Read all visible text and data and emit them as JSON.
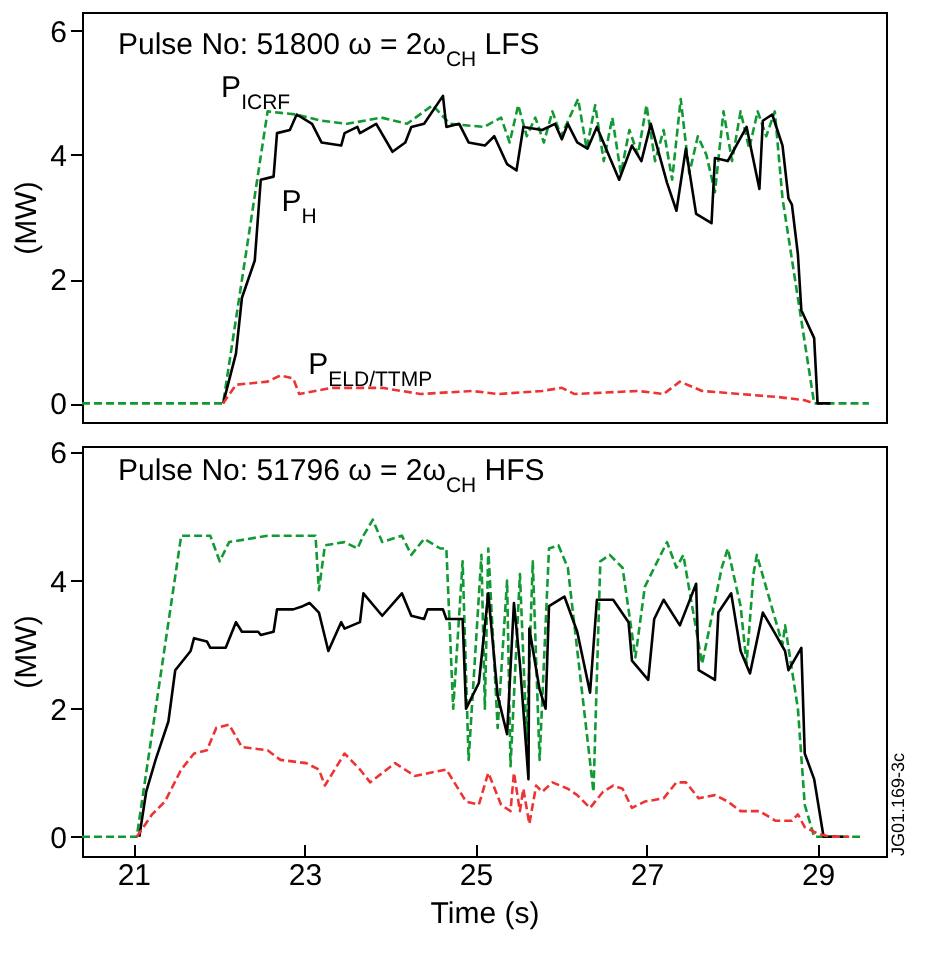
{
  "chart_data": [
    {
      "type": "line",
      "title": "Pulse No: 51800  ω = 2ω$_{CH}$ LFS",
      "ylabel": "(MW)",
      "xlim": [
        20.4,
        29.8
      ],
      "ylim": [
        -0.3,
        6.3
      ],
      "yticks": [
        0,
        2,
        4,
        6
      ],
      "tick_labels": "y",
      "grid": false,
      "series": [
        {
          "color": "#119933",
          "line_style": "dashed",
          "x": [
            20.4,
            22.05,
            22.57,
            22.9,
            23.2,
            23.5,
            23.9,
            24.2,
            24.5,
            24.7,
            25.1,
            25.3,
            25.4,
            25.5,
            25.6,
            25.7,
            25.8,
            25.9,
            26.0,
            26.1,
            26.2,
            26.3,
            26.4,
            26.5,
            26.6,
            26.7,
            26.8,
            26.9,
            27.0,
            27.1,
            27.2,
            27.3,
            27.4,
            27.5,
            27.6,
            27.7,
            27.8,
            27.9,
            28.0,
            28.1,
            28.2,
            28.3,
            28.4,
            28.5,
            28.59,
            28.96,
            29.6
          ],
          "values": [
            0,
            0,
            4.7,
            4.65,
            4.55,
            4.5,
            4.6,
            4.5,
            4.8,
            4.5,
            4.45,
            4.6,
            4.2,
            4.8,
            4.3,
            4.6,
            4.2,
            4.7,
            4.3,
            4.6,
            4.9,
            4.1,
            4.8,
            3.9,
            4.6,
            3.7,
            4.4,
            4.0,
            4.8,
            3.9,
            4.4,
            3.6,
            4.9,
            3.7,
            4.3,
            4.0,
            3.4,
            4.7,
            3.9,
            4.7,
            4.1,
            4.7,
            4.3,
            4.7,
            3.3,
            0,
            0
          ]
        },
        {
          "color": "#000000",
          "line_style": "solid",
          "x": [
            22.05,
            22.2,
            22.27,
            22.42,
            22.49,
            22.64,
            22.68,
            22.83,
            22.91,
            23.09,
            23.2,
            23.43,
            23.47,
            23.62,
            23.65,
            23.84,
            24.03,
            24.18,
            24.25,
            24.4,
            24.62,
            24.66,
            24.81,
            24.92,
            25.11,
            25.22,
            25.37,
            25.48,
            25.56,
            25.78,
            25.93,
            26.01,
            26.08,
            26.19,
            26.31,
            26.42,
            26.68,
            26.83,
            26.94,
            27.05,
            27.24,
            27.35,
            27.46,
            27.58,
            27.76,
            27.8,
            27.95,
            28.17,
            28.32,
            28.36,
            28.47,
            28.59,
            28.66,
            28.7,
            28.77,
            28.81,
            28.96,
            29.0,
            29.15
          ],
          "values": [
            0,
            0.8,
            1.7,
            2.3,
            3.6,
            3.65,
            4.35,
            4.4,
            4.65,
            4.5,
            4.2,
            4.15,
            4.35,
            4.45,
            4.35,
            4.5,
            4.05,
            4.2,
            4.45,
            4.5,
            4.95,
            4.45,
            4.5,
            4.2,
            4.15,
            4.3,
            3.85,
            3.75,
            4.45,
            4.4,
            4.5,
            4.25,
            4.5,
            4.2,
            4.1,
            4.45,
            3.6,
            4.15,
            3.9,
            4.5,
            3.55,
            3.1,
            4.1,
            3.05,
            2.9,
            3.95,
            3.9,
            4.45,
            3.45,
            4.55,
            4.65,
            4.15,
            3.3,
            3.2,
            2.4,
            1.5,
            1.05,
            0,
            0
          ]
        },
        {
          "color": "#ee3333",
          "line_style": "dashed",
          "x": [
            22.05,
            22.2,
            22.57,
            22.72,
            22.87,
            22.94,
            23.32,
            23.91,
            24.36,
            24.96,
            25.26,
            25.78,
            26.01,
            26.16,
            26.9,
            27.2,
            27.39,
            27.65,
            28.1,
            28.55,
            28.85,
            28.96
          ],
          "values": [
            0,
            0.3,
            0.35,
            0.45,
            0.4,
            0.15,
            0.25,
            0.25,
            0.15,
            0.2,
            0.15,
            0.2,
            0.25,
            0.15,
            0.2,
            0.15,
            0.35,
            0.2,
            0.15,
            0.1,
            0.05,
            0
          ]
        }
      ],
      "annotations": [
        {
          "text": "P$_{ICRF}$",
          "x": 22.57,
          "y": 4.7
        },
        {
          "text": "P$_{H}$",
          "x": 22.64,
          "y": 3.65
        },
        {
          "text": "P$_{ELD/TTMP}$",
          "x": 23.91,
          "y": 0.25
        }
      ]
    },
    {
      "type": "line",
      "title": "Pulse No: 51796  ω = 2ω$_{CH}$ HFS",
      "xlabel": "Time (s)",
      "ylabel": "(MW)",
      "xlim": [
        20.4,
        29.8
      ],
      "ylim": [
        -0.3,
        6.1
      ],
      "xticks": [
        21,
        23,
        25,
        27,
        29
      ],
      "yticks": [
        0,
        2,
        4,
        6
      ],
      "grid": false,
      "series": [
        {
          "color": "#119933",
          "line_style": "dashed",
          "x": [
            20.4,
            21.04,
            21.56,
            21.9,
            22.01,
            22.12,
            22.57,
            23.13,
            23.17,
            23.24,
            23.47,
            23.62,
            23.69,
            23.8,
            23.91,
            24.14,
            24.25,
            24.4,
            24.59,
            24.66,
            24.74,
            24.85,
            24.92,
            25.07,
            25.11,
            25.15,
            25.26,
            25.37,
            25.41,
            25.52,
            25.6,
            25.67,
            25.75,
            25.86,
            25.97,
            26.08,
            26.38,
            26.46,
            26.57,
            26.72,
            26.87,
            26.98,
            27.09,
            27.24,
            27.35,
            27.43,
            27.65,
            27.88,
            27.95,
            28.1,
            28.17,
            28.25,
            28.29,
            28.59,
            28.62,
            28.77,
            28.85,
            28.96,
            29.52
          ],
          "values": [
            0,
            0,
            4.7,
            4.7,
            4.3,
            4.6,
            4.7,
            4.7,
            3.85,
            4.55,
            4.6,
            4.5,
            4.7,
            4.95,
            4.6,
            4.7,
            4.4,
            4.65,
            4.5,
            4.5,
            2.0,
            4.3,
            1.2,
            4.4,
            2.0,
            4.5,
            1.7,
            4.0,
            1.1,
            4.1,
            1.5,
            4.3,
            1.2,
            4.5,
            4.55,
            4.2,
            0.7,
            4.3,
            4.4,
            4.2,
            2.8,
            3.9,
            4.2,
            4.6,
            4.2,
            4.4,
            2.7,
            4.2,
            4.5,
            3.6,
            2.7,
            4.1,
            4.4,
            3.0,
            3.3,
            2.0,
            0.5,
            0,
            0
          ]
        },
        {
          "color": "#000000",
          "line_style": "solid",
          "x": [
            21.07,
            21.15,
            21.26,
            21.41,
            21.49,
            21.67,
            21.71,
            21.86,
            21.9,
            22.08,
            22.2,
            22.27,
            22.46,
            22.49,
            22.64,
            22.68,
            22.87,
            22.98,
            23.06,
            23.17,
            23.28,
            23.43,
            23.47,
            23.65,
            23.69,
            23.91,
            24.14,
            24.25,
            24.4,
            24.44,
            24.62,
            24.66,
            24.85,
            24.89,
            25.04,
            25.15,
            25.26,
            25.37,
            25.45,
            25.52,
            25.62,
            25.63,
            25.75,
            25.82,
            25.86,
            26.04,
            26.19,
            26.34,
            26.42,
            26.61,
            26.79,
            26.83,
            27.02,
            27.09,
            27.2,
            27.39,
            27.58,
            27.61,
            27.8,
            27.84,
            27.99,
            28.1,
            28.21,
            28.36,
            28.47,
            28.62,
            28.66,
            28.81,
            28.85,
            28.96,
            29.07,
            29.3
          ],
          "values": [
            0,
            0.7,
            1.2,
            1.8,
            2.6,
            2.9,
            3.1,
            3.05,
            2.95,
            2.95,
            3.35,
            3.2,
            3.2,
            3.15,
            3.2,
            3.55,
            3.55,
            3.6,
            3.65,
            3.5,
            2.9,
            3.35,
            3.25,
            3.35,
            3.8,
            3.45,
            3.8,
            3.45,
            3.4,
            3.55,
            3.55,
            3.4,
            3.4,
            2.0,
            2.4,
            3.8,
            2.2,
            1.6,
            3.65,
            2.7,
            0.9,
            3.25,
            2.3,
            2.0,
            3.6,
            3.75,
            3.2,
            2.25,
            3.7,
            3.7,
            3.35,
            2.75,
            2.45,
            3.4,
            3.7,
            3.3,
            3.95,
            2.6,
            2.45,
            3.5,
            3.8,
            2.9,
            2.55,
            3.5,
            3.25,
            2.9,
            2.6,
            2.95,
            1.3,
            0.9,
            0,
            0
          ]
        },
        {
          "color": "#ee3333",
          "line_style": "dashed",
          "x": [
            21.04,
            21.22,
            21.37,
            21.56,
            21.71,
            21.86,
            21.97,
            22.12,
            22.27,
            22.57,
            22.72,
            23.02,
            23.17,
            23.24,
            23.47,
            23.65,
            23.77,
            24.06,
            24.29,
            24.66,
            24.89,
            25.04,
            25.15,
            25.3,
            25.41,
            25.45,
            25.52,
            25.56,
            25.63,
            25.71,
            25.78,
            25.9,
            26.08,
            26.19,
            26.34,
            26.49,
            26.61,
            26.72,
            26.83,
            26.98,
            27.2,
            27.35,
            27.46,
            27.61,
            27.8,
            27.95,
            28.1,
            28.32,
            28.51,
            28.7,
            28.77,
            28.85,
            29.0,
            29.15,
            29.37
          ],
          "values": [
            0,
            0.35,
            0.55,
            1.05,
            1.3,
            1.35,
            1.7,
            1.75,
            1.4,
            1.35,
            1.2,
            1.15,
            1.05,
            0.8,
            1.3,
            1.05,
            0.85,
            1.15,
            0.95,
            1.05,
            0.55,
            0.5,
            1.0,
            0.5,
            0.4,
            1.0,
            0.4,
            0.75,
            0.2,
            0.8,
            0.7,
            0.85,
            0.75,
            0.65,
            0.45,
            0.7,
            0.8,
            0.75,
            0.45,
            0.55,
            0.6,
            0.85,
            0.85,
            0.6,
            0.65,
            0.55,
            0.4,
            0.4,
            0.25,
            0.25,
            0.35,
            0.15,
            0.05,
            0,
            0
          ]
        }
      ],
      "annotations": [
        "JG01.169-3c"
      ]
    }
  ]
}
